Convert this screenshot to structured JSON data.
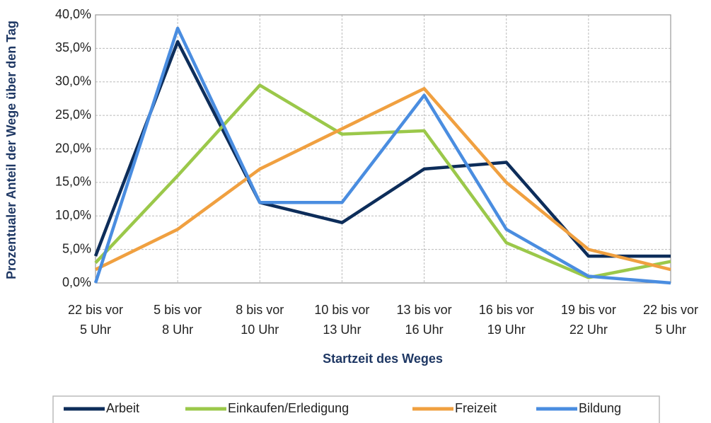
{
  "chart_data": {
    "type": "line",
    "x_label": "Startzeit des Weges",
    "y_label": "Prozentualer Anteil der Wege über den Tag",
    "categories": [
      "22 bis vor\n5 Uhr",
      "5 bis vor\n8 Uhr",
      "8 bis vor\n10 Uhr",
      "10 bis vor\n13 Uhr",
      "13 bis vor\n16 Uhr",
      "16 bis vor\n19 Uhr",
      "19 bis vor\n22 Uhr",
      "22 bis vor\n5 Uhr"
    ],
    "series": [
      {
        "name": "Arbeit",
        "color": "#0d2d5a",
        "values": [
          4,
          36,
          12,
          9,
          17,
          18,
          4,
          4
        ]
      },
      {
        "name": "Einkaufen/Erledigung",
        "color": "#9bc84a",
        "values": [
          3,
          16,
          29.5,
          22.2,
          22.7,
          6,
          0.8,
          3.2
        ]
      },
      {
        "name": "Freizeit",
        "color": "#f0a040",
        "values": [
          2,
          8,
          17,
          23,
          29,
          15,
          5,
          2
        ]
      },
      {
        "name": "Bildung",
        "color": "#4a8de0",
        "values": [
          0,
          38,
          12,
          12,
          28,
          8,
          1,
          0
        ]
      }
    ],
    "ylim": [
      0,
      40
    ],
    "yticks": [
      {
        "value": 0,
        "label": "0,0%"
      },
      {
        "value": 5,
        "label": "5,0%"
      },
      {
        "value": 10,
        "label": "10,0%"
      },
      {
        "value": 15,
        "label": "15,0%"
      },
      {
        "value": 20,
        "label": "20,0%"
      },
      {
        "value": 25,
        "label": "25,0%"
      },
      {
        "value": 30,
        "label": "30,0%"
      },
      {
        "value": 35,
        "label": "35,0%"
      },
      {
        "value": 40,
        "label": "40,0%"
      }
    ],
    "grid": true,
    "legend": "bottom"
  }
}
